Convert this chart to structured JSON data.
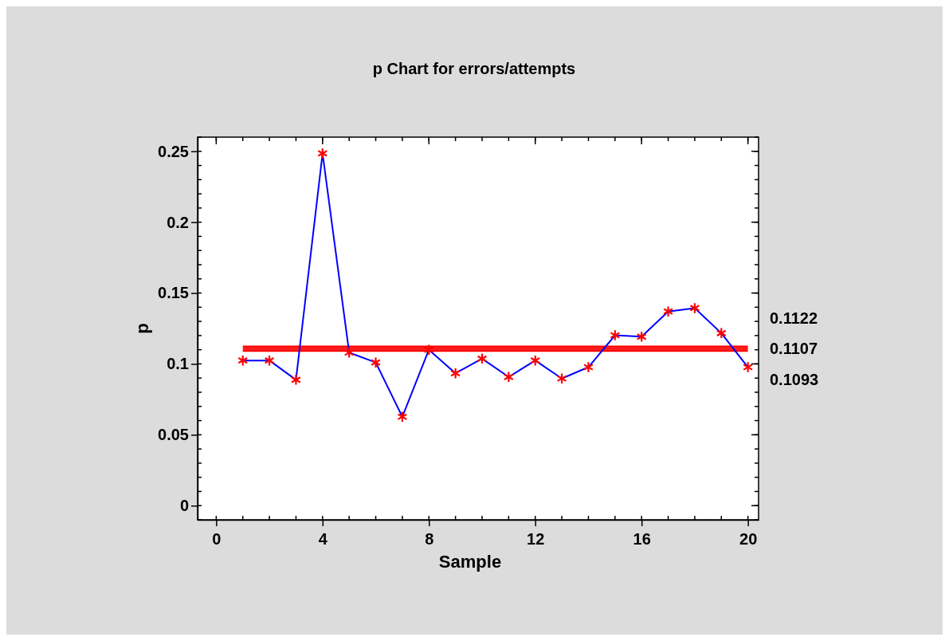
{
  "chart_data": {
    "type": "line",
    "title": "p Chart for errors/attempts",
    "xlabel": "Sample",
    "ylabel": "p",
    "x": [
      1,
      2,
      3,
      4,
      5,
      6,
      7,
      8,
      9,
      10,
      11,
      12,
      13,
      14,
      15,
      16,
      17,
      18,
      19,
      20
    ],
    "series": [
      {
        "color": "#0000ff",
        "values": [
          0.1024,
          0.1024,
          0.0888,
          0.2485,
          0.108,
          0.101,
          0.0627,
          0.11,
          0.0934,
          0.1037,
          0.0908,
          0.1024,
          0.0897,
          0.0977,
          0.1202,
          0.1192,
          0.137,
          0.1394,
          0.1217,
          0.0977
        ]
      }
    ],
    "marker": "cross",
    "line_style": "solid",
    "xlim": [
      -0.7,
      20.4
    ],
    "xticks": [
      0,
      4,
      8,
      12,
      16,
      20
    ],
    "ylim": [
      -0.01,
      0.26
    ],
    "yticks": [
      0,
      0.05,
      0.1,
      0.15,
      0.2,
      0.25
    ],
    "ref_lines": [
      {
        "axis": "y",
        "value": 0.1122,
        "label": "0.1122",
        "color": "#ff0000"
      },
      {
        "axis": "y",
        "value": 0.1107,
        "label": "0.1107",
        "color": "#ff0000"
      },
      {
        "axis": "y",
        "value": 0.1093,
        "label": "0.1093",
        "color": "#ff0000"
      }
    ],
    "grid": false
  }
}
